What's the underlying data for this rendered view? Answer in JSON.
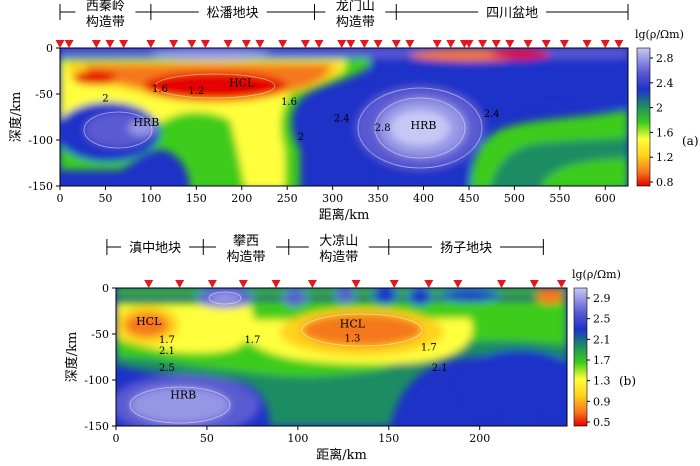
{
  "chart_data": [
    {
      "type": "heatmap",
      "panel_label": "(a)",
      "xlabel": "距离/km",
      "ylabel": "深度/km",
      "xlim": [
        0,
        625
      ],
      "ylim": [
        -150,
        0
      ],
      "xticks": [
        0,
        50,
        100,
        150,
        200,
        250,
        300,
        350,
        400,
        450,
        500,
        550,
        600
      ],
      "yticks": [
        0,
        -50,
        -100,
        -150
      ],
      "colorbar": {
        "title": "lg(ρ/Ωm)",
        "ticks": [
          2.8,
          2.4,
          2,
          1.6,
          1.2,
          0.8
        ],
        "stops": [
          "#e60000",
          "#f5781e",
          "#ffd21e",
          "#ffff3c",
          "#3ccc1e",
          "#1e8c64",
          "#1e32c8",
          "#5a5ad2",
          "#9696e6",
          "#c8c8f5"
        ]
      },
      "regions": [
        {
          "label": "西秦岭",
          "label2": "构造带",
          "x": [
            0,
            100
          ]
        },
        {
          "label": "松潘地块",
          "x": [
            100,
            280
          ]
        },
        {
          "label": "龙门山",
          "label2": "构造带",
          "x": [
            280,
            370
          ]
        },
        {
          "label": "四川盆地",
          "x": [
            370,
            625
          ]
        }
      ],
      "stations": [
        0,
        10,
        40,
        55,
        70,
        100,
        125,
        145,
        160,
        185,
        205,
        220,
        245,
        270,
        285,
        310,
        320,
        335,
        350,
        370,
        385,
        415,
        430,
        445,
        450,
        465,
        480,
        495,
        515,
        535,
        555,
        580,
        600,
        615
      ],
      "annotations": [
        {
          "text": "HCL",
          "x": 200,
          "y": -42
        },
        {
          "text": "HRB",
          "x": 95,
          "y": -85
        },
        {
          "text": "HRB",
          "x": 400,
          "y": -88
        },
        {
          "text": "1.6",
          "x": 110,
          "y": -48
        },
        {
          "text": "1.2",
          "x": 150,
          "y": -50
        },
        {
          "text": "2",
          "x": 50,
          "y": -58
        },
        {
          "text": "1.6",
          "x": 252,
          "y": -62
        },
        {
          "text": "2",
          "x": 265,
          "y": -100
        },
        {
          "text": "2.4",
          "x": 310,
          "y": -80
        },
        {
          "text": "2.8",
          "x": 355,
          "y": -90
        },
        {
          "text": "2.4",
          "x": 475,
          "y": -75
        }
      ]
    },
    {
      "type": "heatmap",
      "panel_label": "(b)",
      "xlabel": "距离/km",
      "ylabel": "深度/km",
      "xlim": [
        0,
        248
      ],
      "ylim": [
        -150,
        0
      ],
      "xticks": [
        0,
        50,
        100,
        150,
        200
      ],
      "yticks": [
        0,
        -50,
        -100,
        -150
      ],
      "colorbar": {
        "title": "lg(ρ/Ωm)",
        "ticks": [
          2.9,
          2.5,
          2.1,
          1.7,
          1.3,
          0.9,
          0.5
        ],
        "stops": [
          "#e60000",
          "#f5781e",
          "#ffd21e",
          "#ffff3c",
          "#3ccc1e",
          "#1e8c64",
          "#1e32c8",
          "#5a5ad2",
          "#9696e6",
          "#c8c8f5"
        ]
      },
      "regions": [
        {
          "label": "滇中地块",
          "x": [
            -5,
            48
          ]
        },
        {
          "label": "攀西",
          "label2": "构造带",
          "x": [
            48,
            95
          ]
        },
        {
          "label": "大凉山",
          "label2": "构造带",
          "x": [
            95,
            150
          ]
        },
        {
          "label": "扬子地块",
          "x": [
            150,
            235
          ]
        }
      ],
      "stations": [
        18,
        35,
        53,
        70,
        88,
        108,
        132,
        153,
        172,
        188,
        212,
        230,
        245
      ],
      "annotations": [
        {
          "text": "HCL",
          "x": 18,
          "y": -40
        },
        {
          "text": "HCL",
          "x": 130,
          "y": -43
        },
        {
          "text": "HRB",
          "x": 37,
          "y": -120
        },
        {
          "text": "1.7",
          "x": 28,
          "y": -60
        },
        {
          "text": "2.1",
          "x": 28,
          "y": -72
        },
        {
          "text": "2.5",
          "x": 28,
          "y": -90
        },
        {
          "text": "1.7",
          "x": 75,
          "y": -60
        },
        {
          "text": "1.3",
          "x": 130,
          "y": -58
        },
        {
          "text": "1.7",
          "x": 172,
          "y": -68
        },
        {
          "text": "2.1",
          "x": 178,
          "y": -90
        }
      ]
    }
  ]
}
